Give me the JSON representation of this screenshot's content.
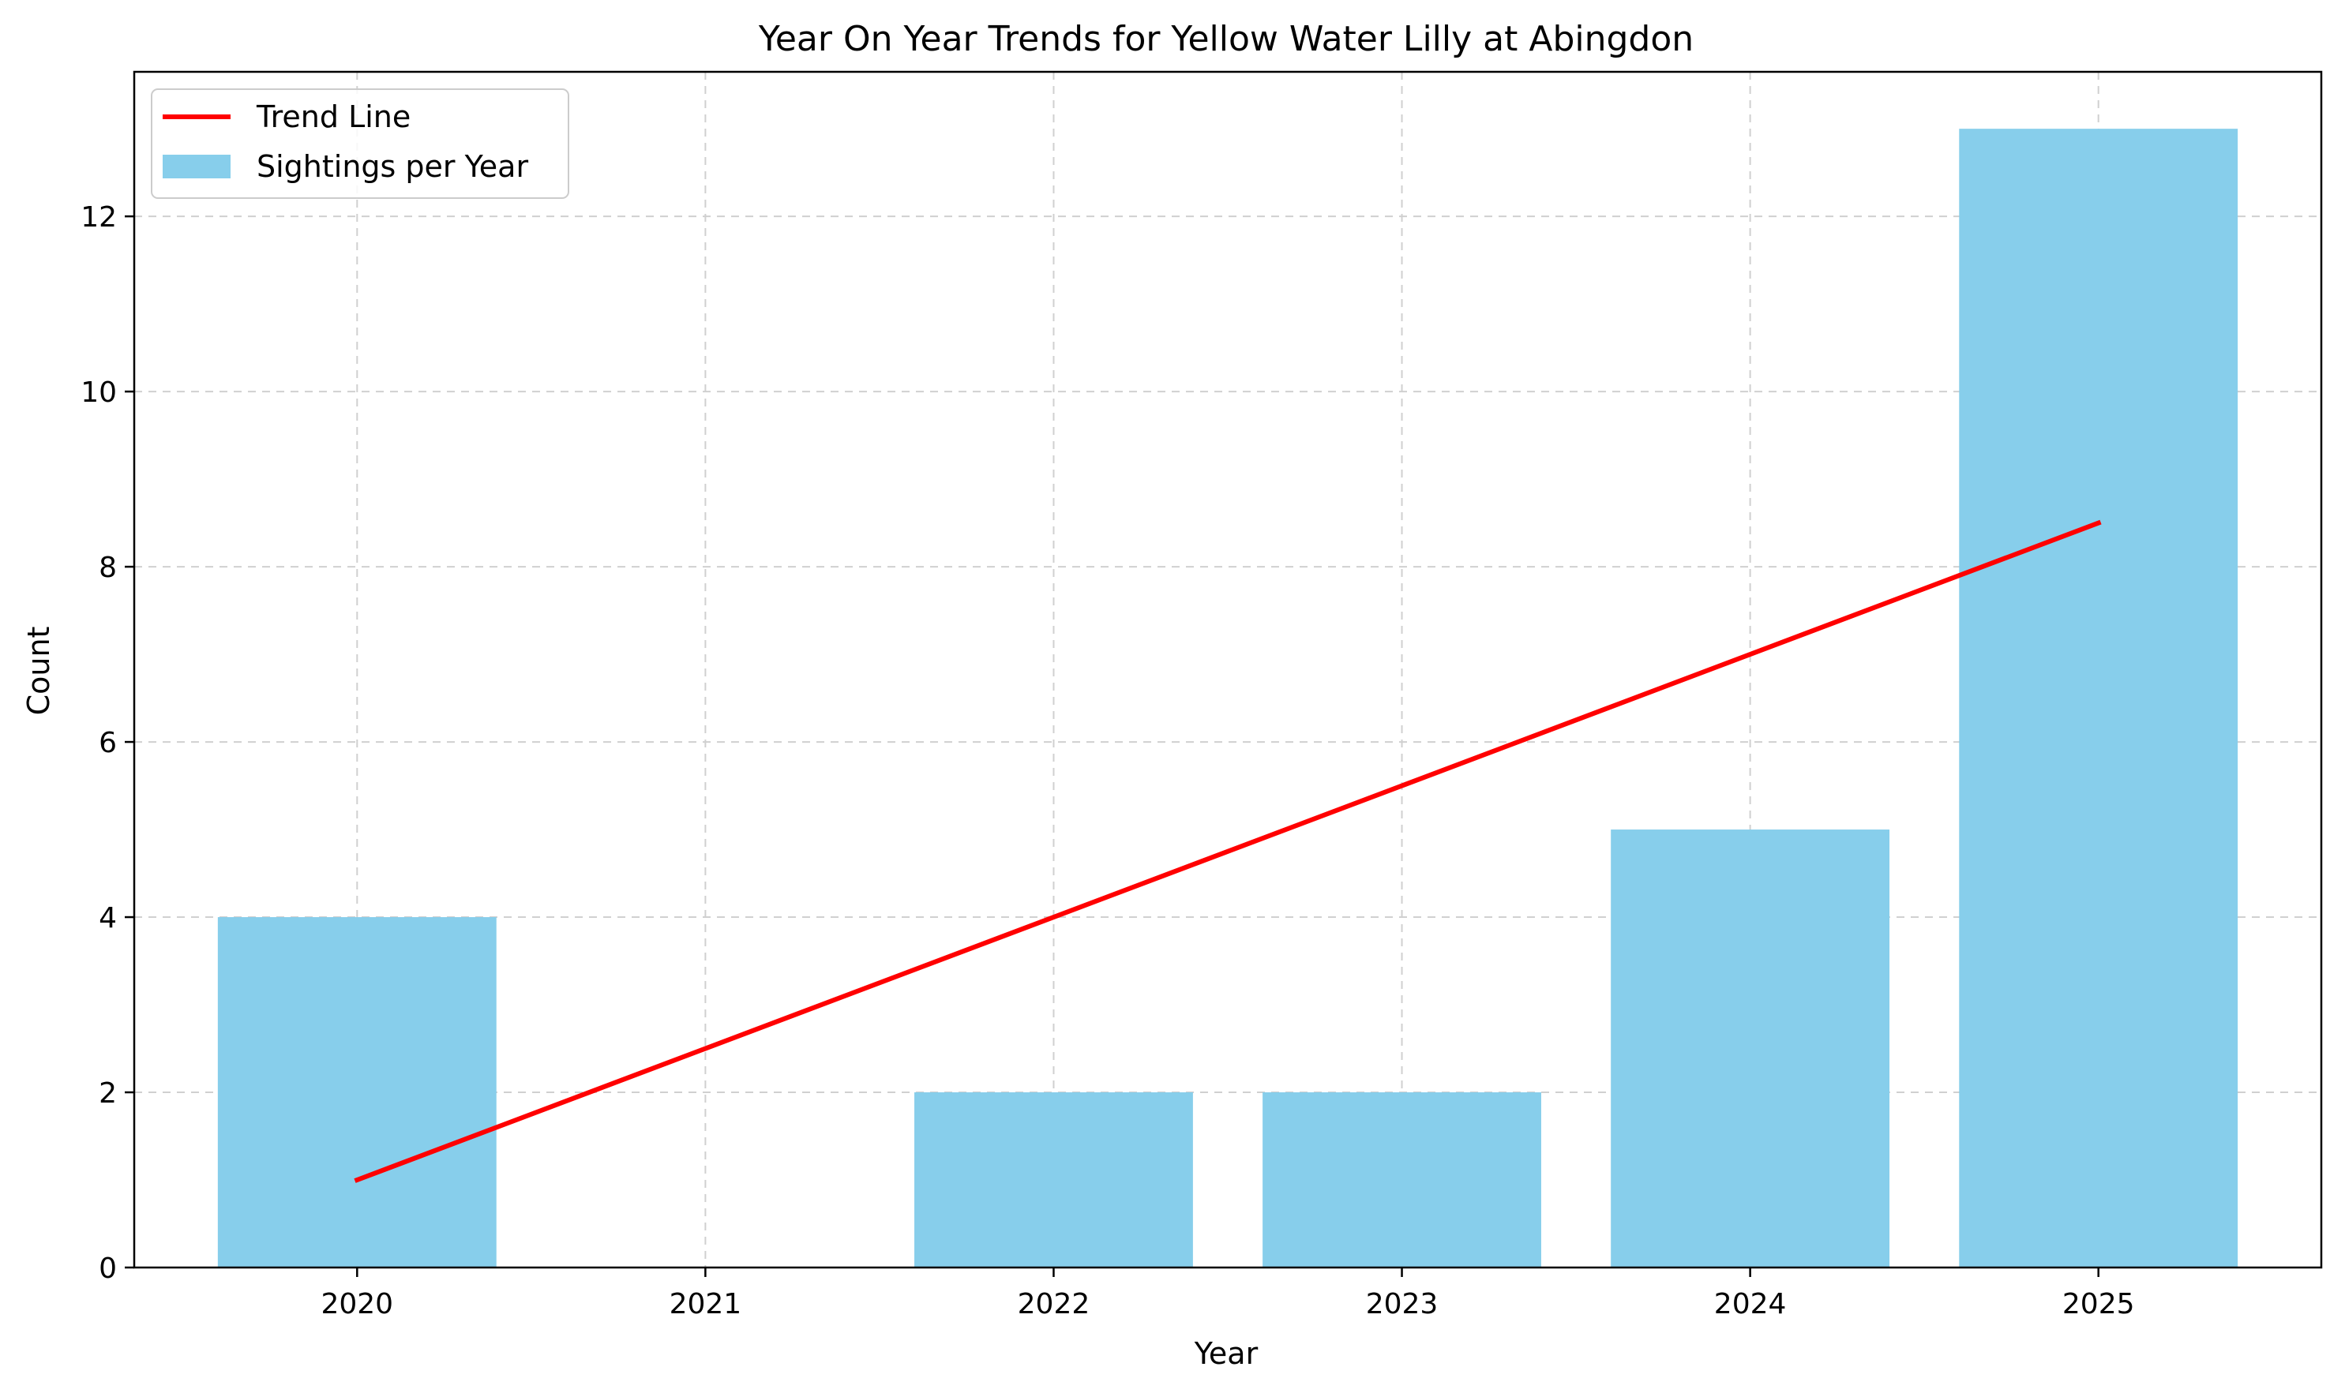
{
  "chart_data": {
    "type": "bar",
    "title": "Year On Year Trends for Yellow Water Lilly at Abingdon",
    "xlabel": "Year",
    "ylabel": "Count",
    "categories": [
      "2020",
      "2021",
      "2022",
      "2023",
      "2024",
      "2025"
    ],
    "ylim": [
      0,
      13.65
    ],
    "yticks": [
      0,
      2,
      4,
      6,
      8,
      10,
      12
    ],
    "grid": true,
    "legend_position": "top-left",
    "series": [
      {
        "name": "Sightings per Year",
        "kind": "bar",
        "color": "#87ceeb",
        "values": [
          4,
          0,
          2,
          2,
          5,
          13
        ]
      },
      {
        "name": "Trend Line",
        "kind": "line",
        "color": "#ff0000",
        "values": [
          1.0,
          2.5,
          4.0,
          5.5,
          7.0,
          8.5
        ]
      }
    ]
  }
}
